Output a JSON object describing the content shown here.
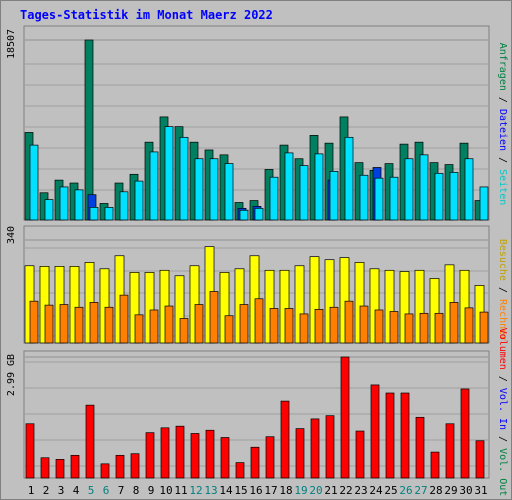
{
  "title": "Tages-Statistik im Monat Maerz 2022",
  "chart_data": [
    {
      "type": "bar",
      "name": "anfragen-dateien-seiten",
      "categories": [
        "1",
        "2",
        "3",
        "4",
        "5",
        "6",
        "7",
        "8",
        "9",
        "10",
        "11",
        "12",
        "13",
        "14",
        "15",
        "16",
        "17",
        "18",
        "19",
        "20",
        "21",
        "22",
        "23",
        "24",
        "25",
        "26",
        "27",
        "28",
        "29",
        "30",
        "31"
      ],
      "weekend_days": [
        5,
        6,
        12,
        13,
        19,
        20,
        26,
        27
      ],
      "ymax_label": "18507",
      "ylim": [
        0,
        18507
      ],
      "right_labels": [
        {
          "text": "Anfragen",
          "color": "#008040"
        },
        {
          "text": "Dateien",
          "color": "#0000ff"
        },
        {
          "text": "Seiten",
          "color": "#00c8c8"
        }
      ],
      "series": [
        {
          "name": "Anfragen",
          "color": "#008060",
          "values": [
            9000,
            2800,
            4100,
            3800,
            18507,
            1700,
            3800,
            4700,
            8000,
            10600,
            9600,
            8000,
            7200,
            6700,
            1800,
            2000,
            5200,
            7700,
            6300,
            8700,
            7900,
            10600,
            5900,
            5100,
            5800,
            7800,
            8000,
            5900,
            5700,
            7900,
            2000
          ]
        },
        {
          "name": "Dateien",
          "color": "#0040e0",
          "values": [
            0,
            0,
            0,
            0,
            2600,
            0,
            0,
            0,
            0,
            0,
            0,
            0,
            0,
            0,
            1200,
            1400,
            0,
            0,
            0,
            0,
            4100,
            0,
            0,
            5400,
            0,
            0,
            0,
            0,
            0,
            0,
            0
          ]
        },
        {
          "name": "Seiten",
          "color": "#00e0ff",
          "values": [
            7700,
            2100,
            3400,
            3100,
            1300,
            1300,
            2900,
            4000,
            7000,
            9600,
            8500,
            6300,
            6300,
            5800,
            1000,
            1200,
            4400,
            6900,
            5600,
            6800,
            5000,
            8500,
            4600,
            4300,
            4400,
            6300,
            6700,
            4800,
            4900,
            6300,
            3400
          ]
        }
      ]
    },
    {
      "type": "bar",
      "name": "besuche-rechner",
      "categories": [
        "1",
        "2",
        "3",
        "4",
        "5",
        "6",
        "7",
        "8",
        "9",
        "10",
        "11",
        "12",
        "13",
        "14",
        "15",
        "16",
        "17",
        "18",
        "19",
        "20",
        "21",
        "22",
        "23",
        "24",
        "25",
        "26",
        "27",
        "28",
        "29",
        "30",
        "31"
      ],
      "ymax_label": "340",
      "ylim": [
        0,
        340
      ],
      "right_labels": [
        {
          "text": "Besuche",
          "color": "#c0a000"
        },
        {
          "text": "Rechner",
          "color": "#ff8000"
        }
      ],
      "series": [
        {
          "name": "Besuche",
          "color": "#ffff00",
          "values": [
            255,
            253,
            253,
            253,
            266,
            245,
            288,
            233,
            233,
            240,
            222,
            255,
            318,
            233,
            245,
            288,
            240,
            240,
            255,
            285,
            275,
            282,
            266,
            245,
            240,
            236,
            240,
            213,
            258,
            240,
            190
          ]
        },
        {
          "name": "Rechner",
          "color": "#ff8000",
          "values": [
            138,
            125,
            127,
            118,
            134,
            118,
            158,
            93,
            109,
            122,
            81,
            127,
            170,
            90,
            127,
            146,
            114,
            114,
            96,
            111,
            118,
            138,
            122,
            109,
            104,
            96,
            98,
            98,
            134,
            116,
            102
          ]
        }
      ]
    },
    {
      "type": "bar",
      "name": "volumen",
      "categories": [
        "1",
        "2",
        "3",
        "4",
        "5",
        "6",
        "7",
        "8",
        "9",
        "10",
        "11",
        "12",
        "13",
        "14",
        "15",
        "16",
        "17",
        "18",
        "19",
        "20",
        "21",
        "22",
        "23",
        "24",
        "25",
        "26",
        "27",
        "28",
        "29",
        "30",
        "31"
      ],
      "ymax_label": "2.99 GB",
      "ylim": [
        0,
        2.99
      ],
      "right_labels": [
        {
          "text": "Volumen",
          "color": "#ff0000"
        },
        {
          "text": "Vol. In",
          "color": "#0000ff"
        },
        {
          "text": "Vol. Out",
          "color": "#008040"
        }
      ],
      "series": [
        {
          "name": "Volumen",
          "color": "#ff0000",
          "values": [
            1.34,
            0.5,
            0.46,
            0.56,
            1.8,
            0.35,
            0.56,
            0.6,
            1.12,
            1.24,
            1.28,
            1.1,
            1.18,
            1.0,
            0.38,
            0.76,
            1.02,
            1.9,
            1.22,
            1.46,
            1.54,
            2.99,
            1.16,
            2.3,
            2.1,
            2.1,
            1.5,
            0.64,
            1.34,
            2.2,
            0.92
          ]
        }
      ]
    }
  ]
}
